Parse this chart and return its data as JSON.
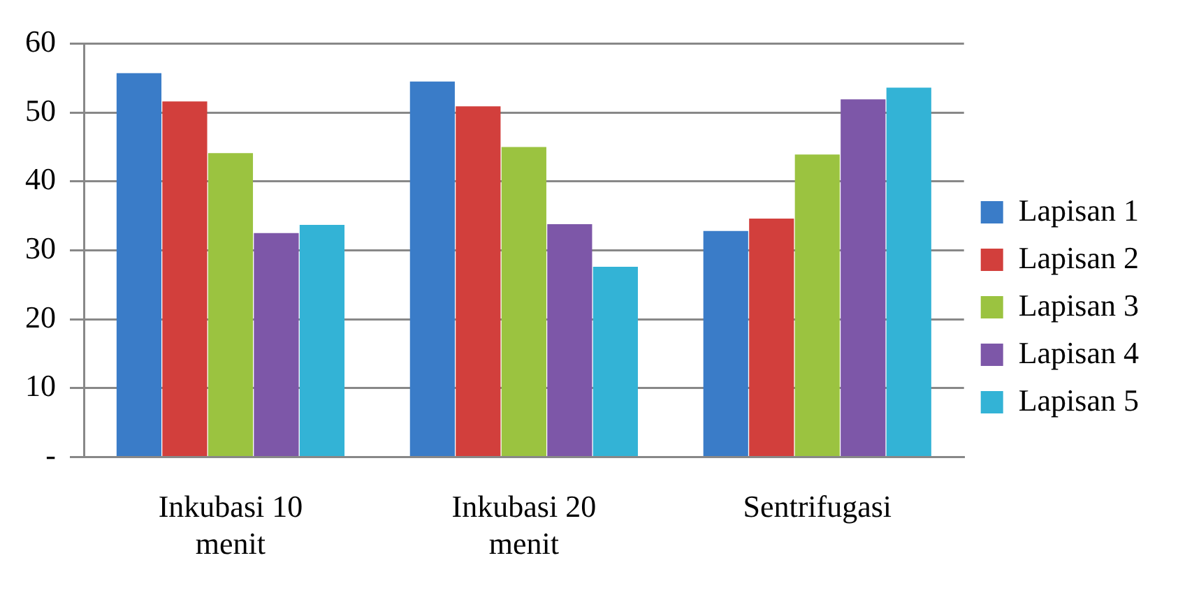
{
  "chart_data": {
    "type": "bar",
    "categories": [
      "Inkubasi 10 menit",
      "Inkubasi 20 menit",
      "Sentrifugasi"
    ],
    "series": [
      {
        "name": "Lapisan 1",
        "color": "#3a7cc8",
        "values": [
          55.7,
          54.5,
          32.8
        ]
      },
      {
        "name": "Lapisan 2",
        "color": "#d23f3c",
        "values": [
          51.6,
          50.9,
          34.6
        ]
      },
      {
        "name": "Lapisan 3",
        "color": "#9bc340",
        "values": [
          44.1,
          45.0,
          43.9
        ]
      },
      {
        "name": "Lapisan 4",
        "color": "#7d57a8",
        "values": [
          32.5,
          33.8,
          51.9
        ]
      },
      {
        "name": "Lapisan 5",
        "color": "#33b3d6",
        "values": [
          33.7,
          27.6,
          53.6
        ]
      }
    ],
    "ylim": [
      0,
      60
    ],
    "yticks": [
      {
        "value": 0,
        "label": "-"
      },
      10,
      20,
      30,
      40,
      50,
      60
    ],
    "grid": "y",
    "legend": "right"
  }
}
